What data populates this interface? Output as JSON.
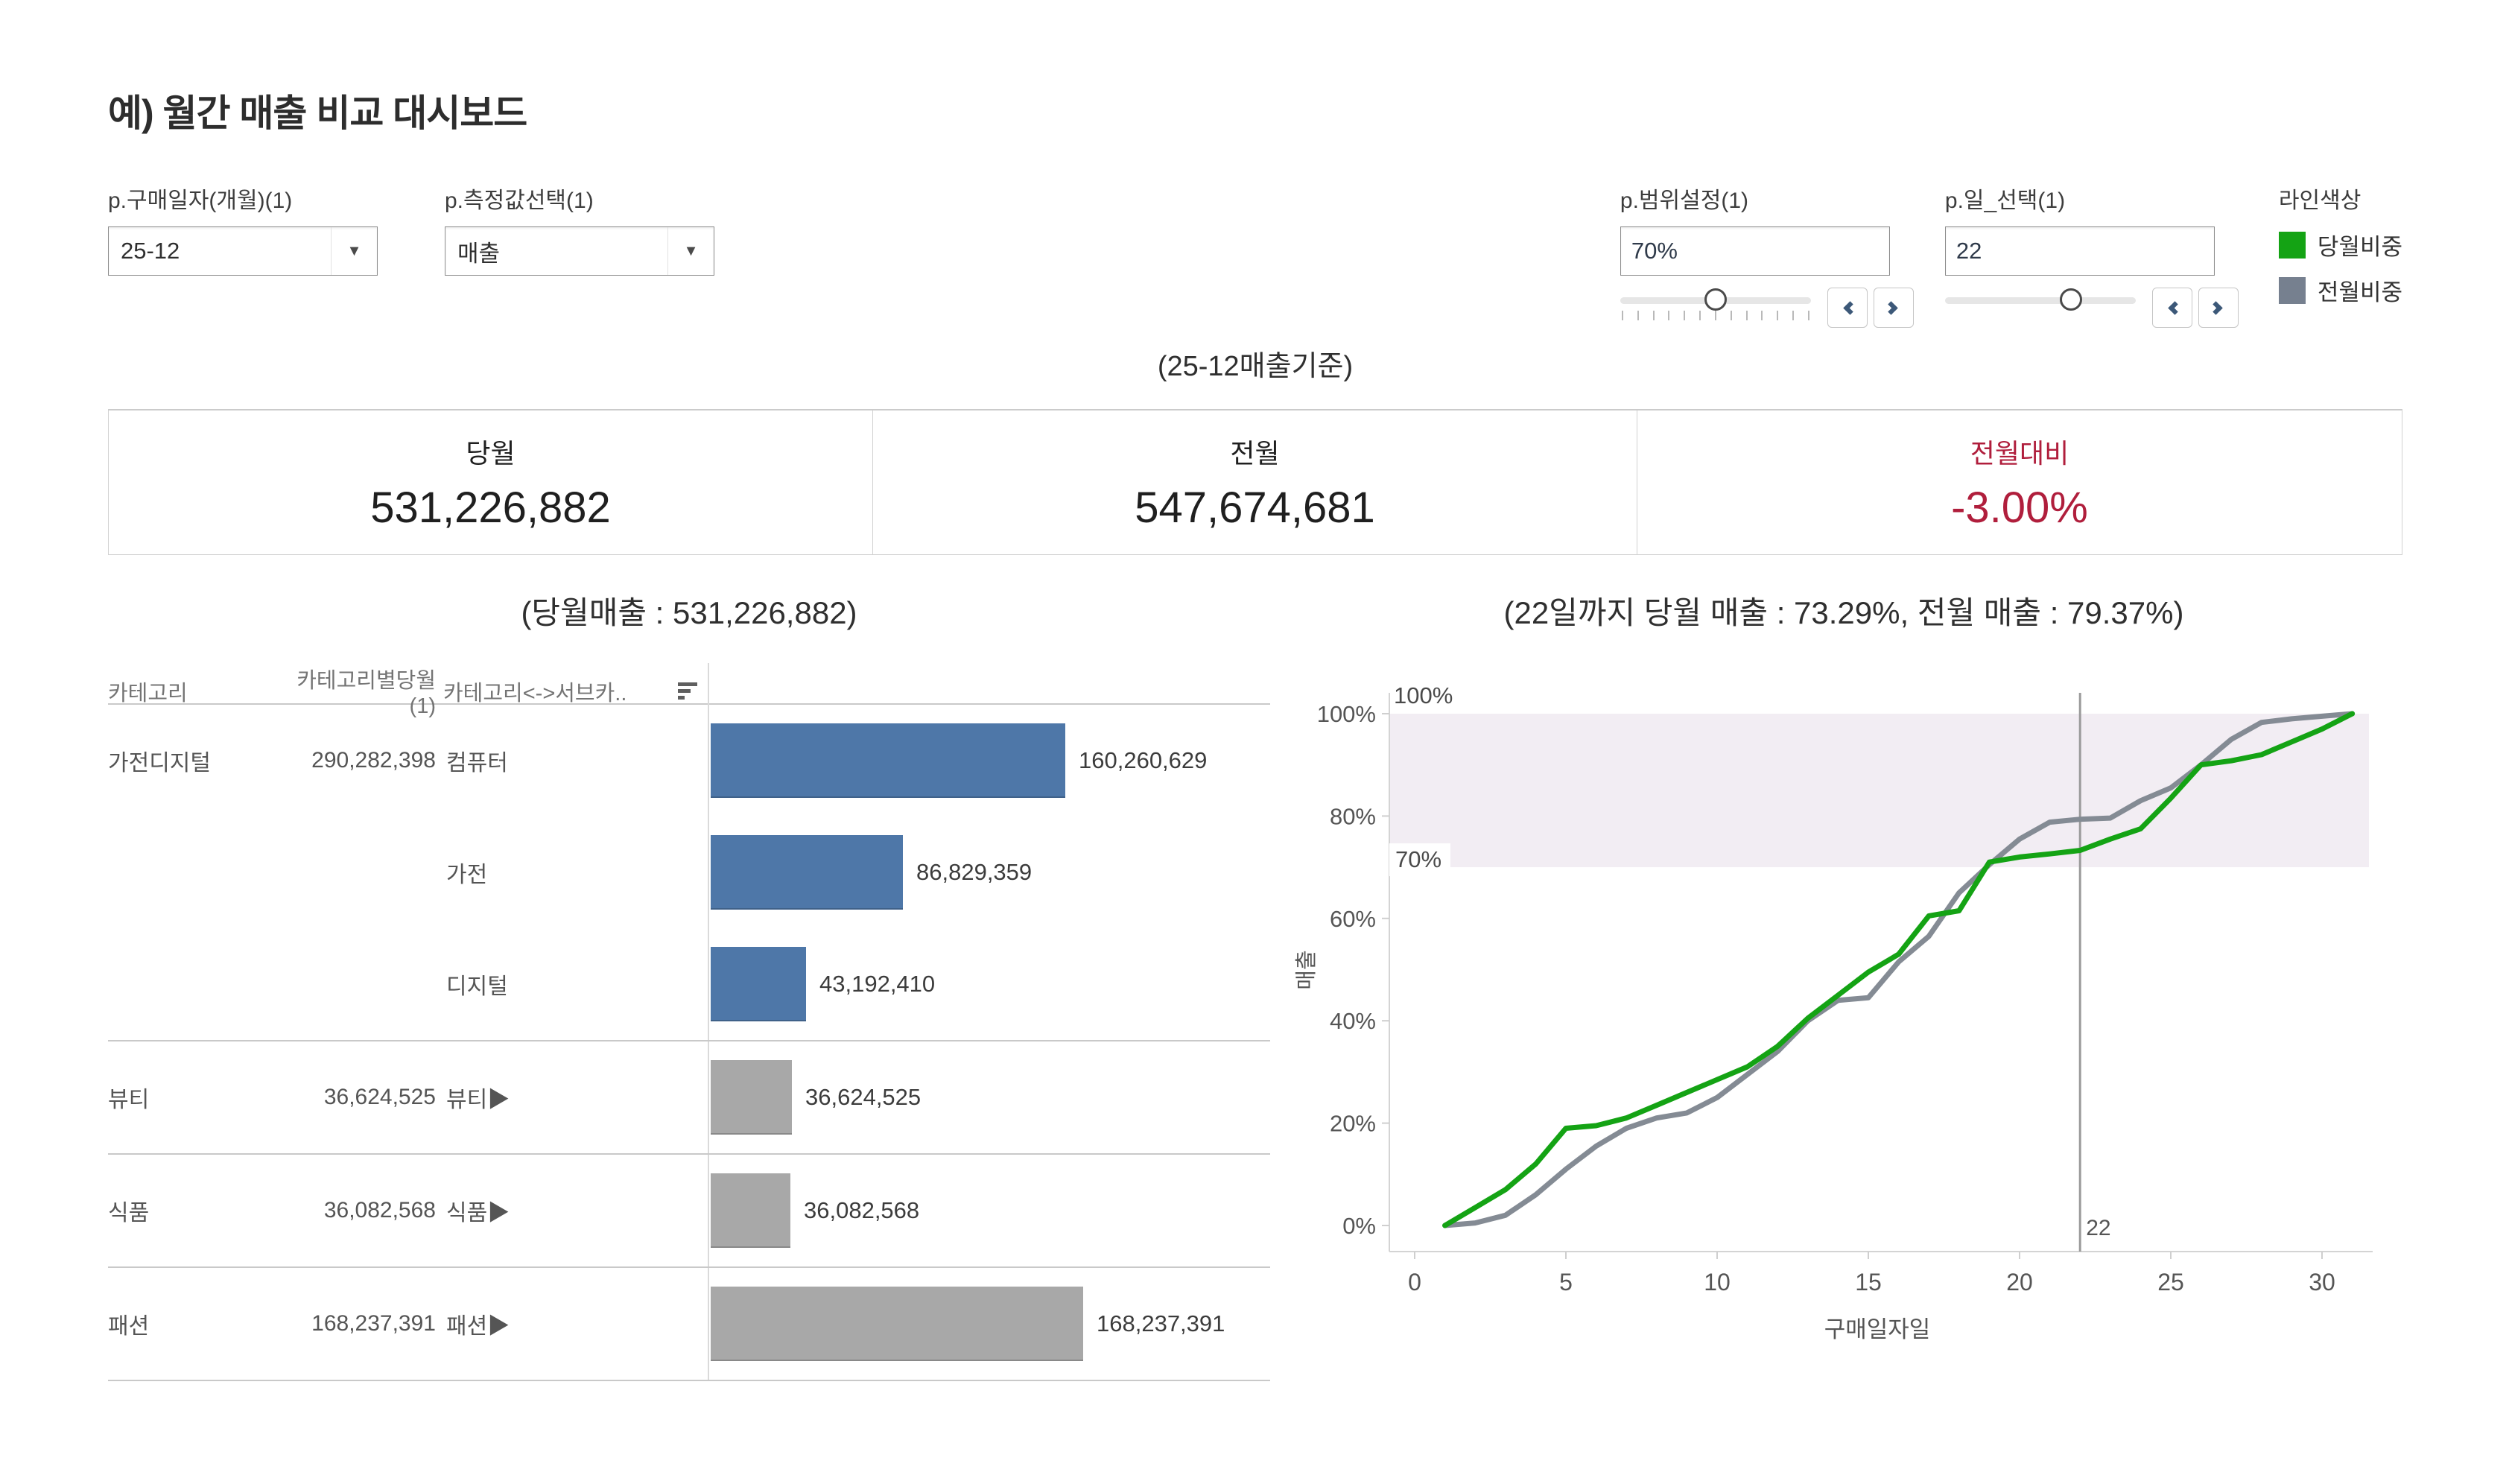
{
  "page": {
    "title": "예) 월간 매출 비교 대시보드"
  },
  "parameters": {
    "purchase_month": {
      "label": "p.구매일자(개월)(1)",
      "value": "25-12"
    },
    "measure_select": {
      "label": "p.측정값선택(1)",
      "value": "매출"
    },
    "range_setting": {
      "label": "p.범위설정(1)",
      "value": "70%"
    },
    "day_select": {
      "label": "p.일_선택(1)",
      "value": "22"
    }
  },
  "legend": {
    "title": "라인색상",
    "items": [
      {
        "label": "당월비중",
        "color": "#14a314"
      },
      {
        "label": "전월비중",
        "color": "#76808f"
      }
    ]
  },
  "kpi": {
    "caption": "(25-12매출기준)",
    "cards": [
      {
        "label": "당월",
        "value": "531,226,882"
      },
      {
        "label": "전월",
        "value": "547,674,681"
      },
      {
        "label": "전월대비",
        "value": "-3.00%",
        "accent": "#b01e3c"
      }
    ]
  },
  "category_section": {
    "columns": [
      "카테고리",
      "카테고리별당월(1)",
      "카테고리<->서브카.."
    ]
  },
  "chart_data": [
    {
      "type": "bar",
      "title": "(당월매출 : 531,226,882)",
      "orientation": "horizontal",
      "max_value": 168237391,
      "bar_colors": {
        "가전디지털": "#4e77a8",
        "default": "#a8a8a8"
      },
      "groups": [
        {
          "category": "가전디지털",
          "category_total": 290282398,
          "category_total_label": "290,282,398",
          "bars": [
            {
              "subcategory": "컴퓨터",
              "value": 160260629,
              "label": "160,260,629",
              "color": "#4e77a8"
            },
            {
              "subcategory": "가전",
              "value": 86829359,
              "label": "86,829,359",
              "color": "#4e77a8"
            },
            {
              "subcategory": "디지털",
              "value": 43192410,
              "label": "43,192,410",
              "color": "#4e77a8"
            }
          ]
        },
        {
          "category": "뷰티",
          "category_total": 36624525,
          "category_total_label": "36,624,525",
          "bars": [
            {
              "subcategory": "뷰티▶",
              "value": 36624525,
              "label": "36,624,525",
              "color": "#a8a8a8"
            }
          ]
        },
        {
          "category": "식품",
          "category_total": 36082568,
          "category_total_label": "36,082,568",
          "bars": [
            {
              "subcategory": "식품▶",
              "value": 36082568,
              "label": "36,082,568",
              "color": "#a8a8a8"
            }
          ]
        },
        {
          "category": "패션",
          "category_total": 168237391,
          "category_total_label": "168,237,391",
          "bars": [
            {
              "subcategory": "패션▶",
              "value": 168237391,
              "label": "168,237,391",
              "color": "#a8a8a8"
            }
          ]
        }
      ]
    },
    {
      "type": "line",
      "title": "(22일까지 당월 매출 : 73.29%, 전월 매출 : 79.37%)",
      "xlabel": "구매일자일",
      "ylabel": "매출",
      "xlim": [
        0,
        31.5
      ],
      "ylim": [
        0,
        100
      ],
      "x_ticks": [
        0,
        5,
        10,
        15,
        20,
        25,
        30
      ],
      "y_ticks": [
        {
          "value": 0,
          "label": "0%"
        },
        {
          "value": 20,
          "label": "20%"
        },
        {
          "value": 40,
          "label": "40%"
        },
        {
          "value": 60,
          "label": "60%"
        },
        {
          "value": 80,
          "label": "80%"
        },
        {
          "value": 100,
          "label": "100%"
        }
      ],
      "band": {
        "from": 70,
        "to": 100,
        "color": "#f2edf3",
        "label_top": "100%",
        "label_bottom": "70%"
      },
      "reference_line": {
        "x": 22,
        "label": "22"
      },
      "x": [
        1,
        2,
        3,
        4,
        5,
        6,
        7,
        8,
        9,
        10,
        11,
        12,
        13,
        14,
        15,
        16,
        17,
        18,
        19,
        20,
        21,
        22,
        23,
        24,
        25,
        26,
        27,
        28,
        29,
        30,
        31
      ],
      "series": [
        {
          "name": "당월비중",
          "color": "#14a314",
          "values": [
            0,
            3.5,
            7,
            12,
            19,
            19.5,
            21,
            23.5,
            26,
            28.5,
            31,
            35,
            40.5,
            45,
            49.5,
            53,
            60.5,
            61.5,
            71,
            72,
            72.6,
            73.29,
            75.5,
            77.5,
            83.5,
            90,
            90.8,
            92,
            94.5,
            97,
            100
          ]
        },
        {
          "name": "전월비중",
          "color": "#848b94",
          "values": [
            0,
            0.5,
            2,
            6,
            11,
            15.5,
            19,
            21,
            22,
            25,
            29.5,
            34,
            40,
            44,
            44.5,
            51.5,
            56.5,
            65,
            70.5,
            75.5,
            78.8,
            79.37,
            79.6,
            83,
            85.5,
            90,
            95,
            98.3,
            99,
            99.5,
            100
          ]
        }
      ]
    }
  ]
}
